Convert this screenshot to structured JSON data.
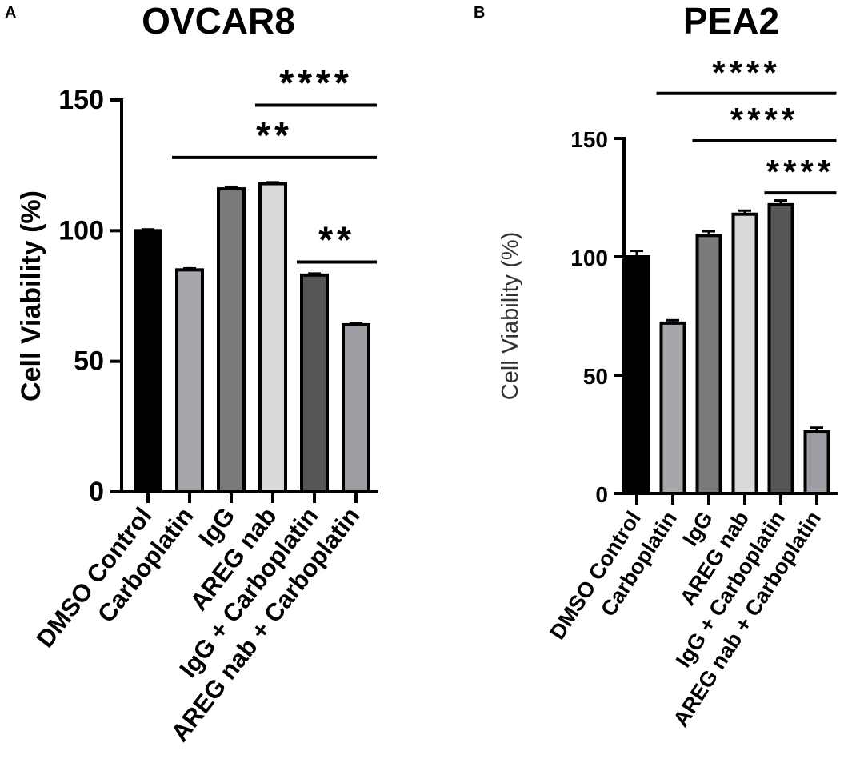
{
  "chart_data": [
    {
      "panel": "A",
      "type": "bar",
      "title": "OVCAR8",
      "ylabel": "Cell Viability (%)",
      "xlabel": "",
      "ylim": [
        0,
        150
      ],
      "yticks": [
        0,
        50,
        100,
        150
      ],
      "categories": [
        "DMSO Control",
        "Carboplatin",
        "IgG",
        "AREG nab",
        "IgG + Carboplatin",
        "AREG nab + Carboplatin"
      ],
      "values": [
        100,
        85,
        116,
        118,
        83,
        64
      ],
      "errors": [
        0.5,
        0.6,
        0.8,
        0.5,
        0.6,
        0.5
      ],
      "colors": [
        "#000000",
        "#a6a6ab",
        "#7a7a7a",
        "#d9d9d9",
        "#565656",
        "#9d9da3"
      ],
      "significance": [
        {
          "label": "****",
          "from": 3,
          "to": 5,
          "y": 148
        },
        {
          "label": "**",
          "from": 1,
          "to": 5,
          "y": 128
        },
        {
          "label": "**",
          "from": 4,
          "to": 5,
          "y": 88
        }
      ]
    },
    {
      "panel": "B",
      "type": "bar",
      "title": "PEA2",
      "ylabel": "Cell Viability (%)",
      "xlabel": "",
      "ylim": [
        0,
        150
      ],
      "yticks": [
        0,
        50,
        100,
        150
      ],
      "categories": [
        "DMSO Control",
        "Carboplatin",
        "IgG",
        "AREG nab",
        "IgG + Carboplatin",
        "AREG nab + Carboplatin"
      ],
      "values": [
        100,
        72,
        109,
        118,
        122,
        26
      ],
      "errors": [
        2.5,
        1.2,
        1.8,
        1.5,
        1.8,
        1.8
      ],
      "colors": [
        "#000000",
        "#a6a6ab",
        "#7a7a7a",
        "#d9d9d9",
        "#565656",
        "#9d9da3"
      ],
      "significance": [
        {
          "label": "****",
          "from": 1,
          "to": 5,
          "y": 169
        },
        {
          "label": "****",
          "from": 2,
          "to": 5,
          "y": 149
        },
        {
          "label": "****",
          "from": 4,
          "to": 5,
          "y": 127
        }
      ]
    }
  ]
}
